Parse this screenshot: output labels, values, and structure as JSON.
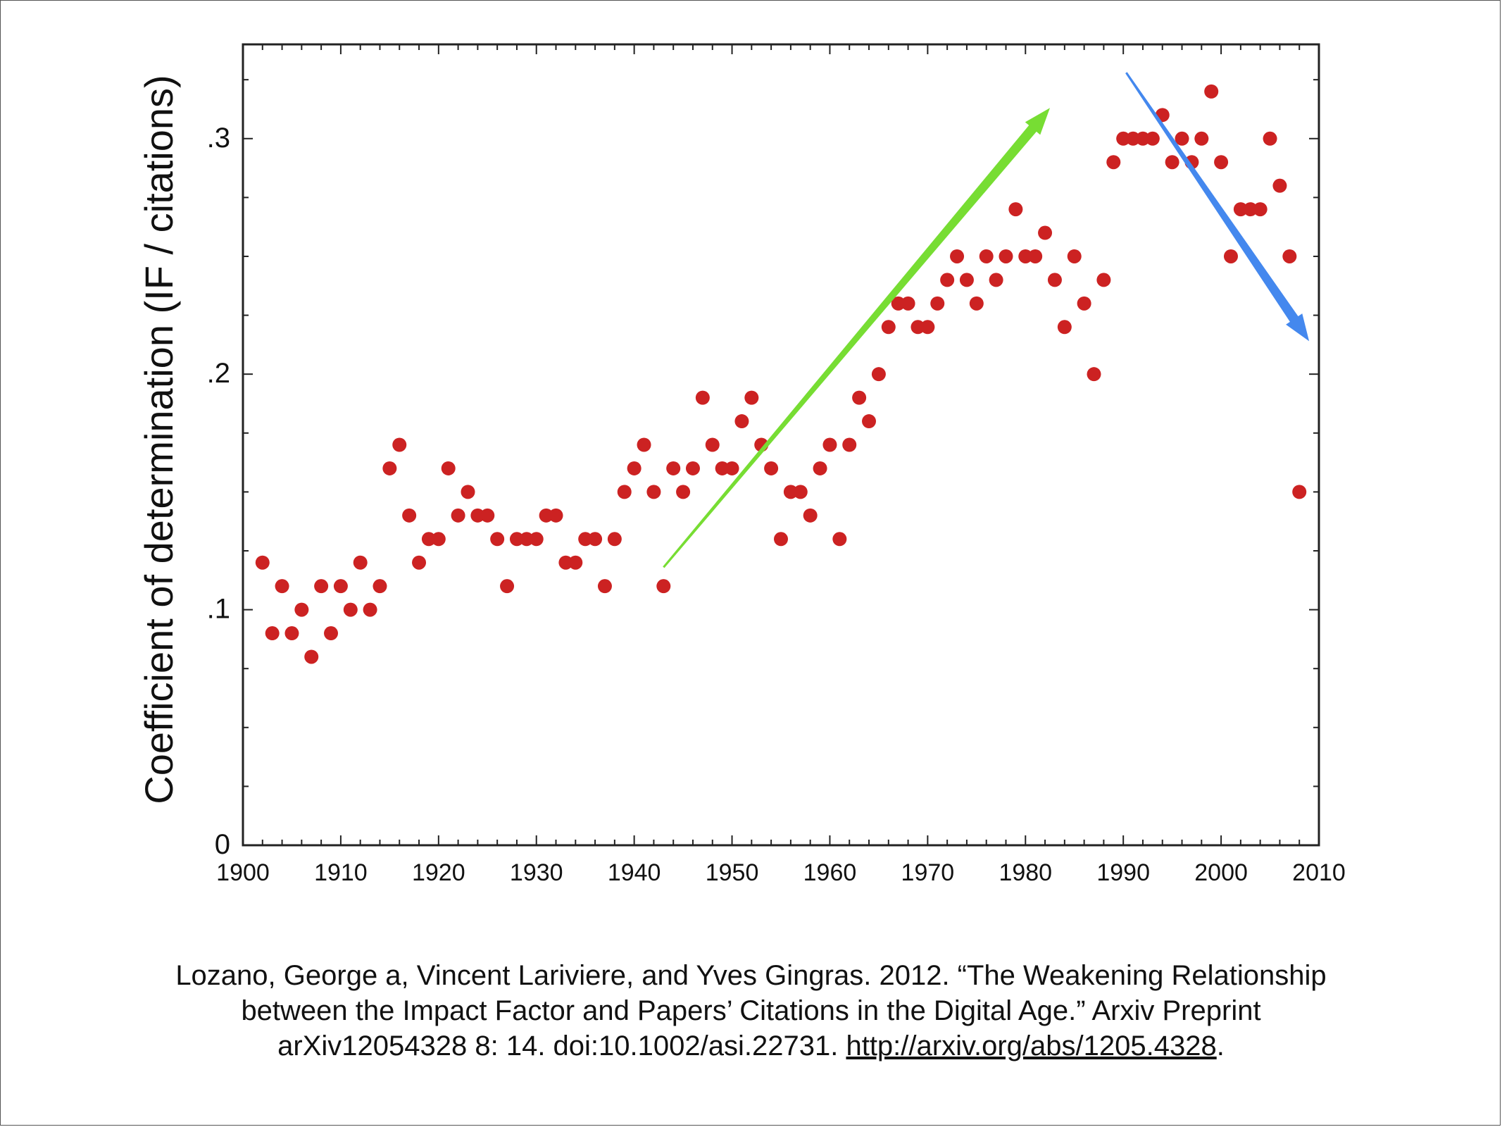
{
  "chart_data": {
    "type": "scatter",
    "ylabel": "Coefficient of determination (IF / citations)",
    "xlabel": "",
    "xlim": [
      1900,
      2010
    ],
    "ylim": [
      0,
      0.34
    ],
    "x_ticks": [
      "1900",
      "1910",
      "1920",
      "1930",
      "1940",
      "1950",
      "1960",
      "1970",
      "1980",
      "1990",
      "2000",
      "2010"
    ],
    "y_ticks": [
      {
        "value": 0,
        "label": "0"
      },
      {
        "value": 0.1,
        "label": ".1"
      },
      {
        "value": 0.2,
        "label": ".2"
      },
      {
        "value": 0.3,
        "label": ".3"
      }
    ],
    "grid": false,
    "point_color": "#cc2222",
    "points": [
      [
        1902,
        0.12
      ],
      [
        1903,
        0.09
      ],
      [
        1904,
        0.11
      ],
      [
        1905,
        0.09
      ],
      [
        1906,
        0.1
      ],
      [
        1907,
        0.08
      ],
      [
        1908,
        0.11
      ],
      [
        1909,
        0.09
      ],
      [
        1910,
        0.11
      ],
      [
        1911,
        0.1
      ],
      [
        1912,
        0.12
      ],
      [
        1913,
        0.1
      ],
      [
        1914,
        0.11
      ],
      [
        1915,
        0.16
      ],
      [
        1916,
        0.17
      ],
      [
        1917,
        0.14
      ],
      [
        1918,
        0.12
      ],
      [
        1919,
        0.13
      ],
      [
        1920,
        0.13
      ],
      [
        1921,
        0.16
      ],
      [
        1922,
        0.14
      ],
      [
        1923,
        0.15
      ],
      [
        1924,
        0.14
      ],
      [
        1925,
        0.14
      ],
      [
        1926,
        0.13
      ],
      [
        1927,
        0.11
      ],
      [
        1928,
        0.13
      ],
      [
        1929,
        0.13
      ],
      [
        1930,
        0.13
      ],
      [
        1931,
        0.14
      ],
      [
        1932,
        0.14
      ],
      [
        1933,
        0.12
      ],
      [
        1934,
        0.12
      ],
      [
        1935,
        0.13
      ],
      [
        1936,
        0.13
      ],
      [
        1937,
        0.11
      ],
      [
        1938,
        0.13
      ],
      [
        1939,
        0.15
      ],
      [
        1940,
        0.16
      ],
      [
        1941,
        0.17
      ],
      [
        1942,
        0.15
      ],
      [
        1943,
        0.11
      ],
      [
        1944,
        0.16
      ],
      [
        1945,
        0.15
      ],
      [
        1946,
        0.16
      ],
      [
        1947,
        0.19
      ],
      [
        1948,
        0.17
      ],
      [
        1949,
        0.16
      ],
      [
        1950,
        0.16
      ],
      [
        1951,
        0.18
      ],
      [
        1952,
        0.19
      ],
      [
        1953,
        0.17
      ],
      [
        1954,
        0.16
      ],
      [
        1955,
        0.13
      ],
      [
        1956,
        0.15
      ],
      [
        1957,
        0.15
      ],
      [
        1958,
        0.14
      ],
      [
        1959,
        0.16
      ],
      [
        1960,
        0.17
      ],
      [
        1961,
        0.13
      ],
      [
        1962,
        0.17
      ],
      [
        1963,
        0.19
      ],
      [
        1964,
        0.18
      ],
      [
        1965,
        0.2
      ],
      [
        1966,
        0.22
      ],
      [
        1967,
        0.23
      ],
      [
        1968,
        0.23
      ],
      [
        1969,
        0.22
      ],
      [
        1970,
        0.22
      ],
      [
        1971,
        0.23
      ],
      [
        1972,
        0.24
      ],
      [
        1973,
        0.25
      ],
      [
        1974,
        0.24
      ],
      [
        1975,
        0.23
      ],
      [
        1976,
        0.25
      ],
      [
        1977,
        0.24
      ],
      [
        1978,
        0.25
      ],
      [
        1979,
        0.27
      ],
      [
        1980,
        0.25
      ],
      [
        1981,
        0.25
      ],
      [
        1982,
        0.26
      ],
      [
        1983,
        0.24
      ],
      [
        1984,
        0.22
      ],
      [
        1985,
        0.25
      ],
      [
        1986,
        0.23
      ],
      [
        1987,
        0.2
      ],
      [
        1988,
        0.24
      ],
      [
        1989,
        0.29
      ],
      [
        1990,
        0.3
      ],
      [
        1991,
        0.3
      ],
      [
        1992,
        0.3
      ],
      [
        1993,
        0.3
      ],
      [
        1994,
        0.31
      ],
      [
        1995,
        0.29
      ],
      [
        1996,
        0.3
      ],
      [
        1997,
        0.29
      ],
      [
        1998,
        0.3
      ],
      [
        1999,
        0.32
      ],
      [
        2000,
        0.29
      ],
      [
        2001,
        0.25
      ],
      [
        2002,
        0.27
      ],
      [
        2003,
        0.27
      ],
      [
        2004,
        0.27
      ],
      [
        2005,
        0.3
      ],
      [
        2006,
        0.28
      ],
      [
        2007,
        0.25
      ],
      [
        2008,
        0.15
      ]
    ],
    "annotations": [
      {
        "type": "arrow",
        "color": "#77dd33",
        "from": [
          1943,
          0.118
        ],
        "to": [
          1982.5,
          0.313
        ]
      },
      {
        "type": "arrow",
        "color": "#4488ee",
        "from": [
          1990.3,
          0.328
        ],
        "to": [
          2009,
          0.214
        ]
      }
    ]
  },
  "caption": {
    "line1": "Lozano, George a, Vincent Lariviere, and Yves Gingras. 2012. “The Weakening Relationship",
    "line2": "between the Impact Factor and Papers’ Citations in the Digital Age.” Arxiv Preprint",
    "line3_prefix": "arXiv12054328 8: 14. doi:10.1002/asi.22731. ",
    "link": "http://arxiv.org/abs/1205.4328",
    "line3_suffix": "."
  }
}
